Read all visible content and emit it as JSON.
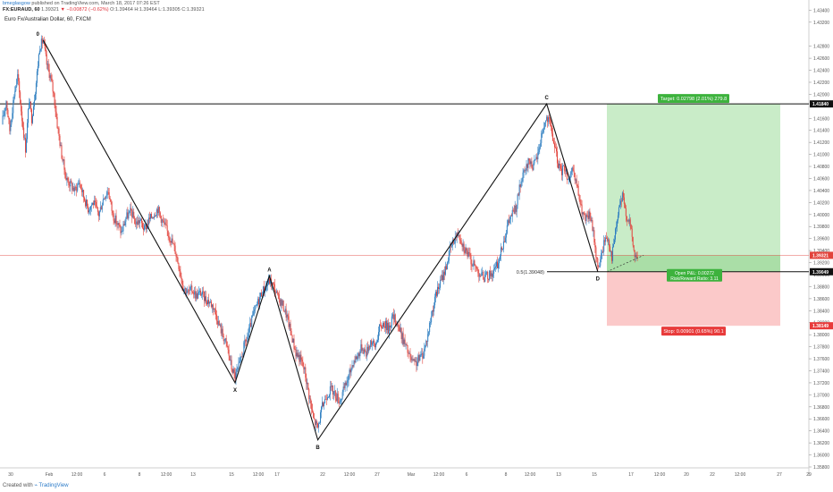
{
  "header": {
    "publisher_user": "bmeglasgow",
    "publisher_text": "published on TradingView.com, March 18, 2017 07:26 EST",
    "symbol": "FX:EURAUD, 60",
    "price": "1.39321",
    "change": "▼ −0.00872 (−0.62%)",
    "ohlc": "O:1.39464 H:1.39464 L:1.39305 C:1.39321"
  },
  "title": "Euro Fx/Australian Dollar, 60, FXCM",
  "footer": {
    "created_with": "Created with",
    "brand": "TradingView"
  },
  "colors": {
    "up": "#2f7fc1",
    "down": "#e2433c",
    "target_zone": "#c9ecc8",
    "stop_zone": "#fbc9c9",
    "target_label": "#3db23d",
    "stop_label": "#e83b3b",
    "current_price": "#e2433c"
  },
  "chart_data": {
    "type": "candlestick",
    "title": "Euro Fx/Australian Dollar, 60, FXCM",
    "xlabel": "",
    "ylabel": "",
    "ylim": [
      1.358,
      1.4345
    ],
    "x_tick_labels": [
      "30",
      "Feb",
      "12:00",
      "6",
      "8",
      "12:00",
      "13",
      "15",
      "12:00",
      "17",
      "22",
      "12:00",
      "27",
      "Mar",
      "12:00",
      "6",
      "8",
      "12:00",
      "13",
      "15",
      "17",
      "12:00",
      "20",
      "22",
      "12:00",
      "27",
      "29"
    ],
    "y_tick_labels": [
      "1.43400",
      "1.43200",
      "1.42800",
      "1.42600",
      "1.42400",
      "1.42200",
      "1.42000",
      "1.41600",
      "1.41400",
      "1.41200",
      "1.41000",
      "1.40800",
      "1.40600",
      "1.40400",
      "1.40200",
      "1.40000",
      "1.39800",
      "1.39600",
      "1.39400",
      "1.39200",
      "1.39000",
      "1.38800",
      "1.38600",
      "1.38400",
      "1.38200",
      "1.38000",
      "1.37800",
      "1.37600",
      "1.37400",
      "1.37200",
      "1.37000",
      "1.36800",
      "1.36600",
      "1.36400",
      "1.36200",
      "1.36000",
      "1.35800"
    ],
    "y_tick_values": [
      1.434,
      1.432,
      1.428,
      1.426,
      1.424,
      1.422,
      1.42,
      1.416,
      1.414,
      1.412,
      1.41,
      1.408,
      1.406,
      1.404,
      1.402,
      1.4,
      1.398,
      1.396,
      1.394,
      1.392,
      1.39,
      1.388,
      1.386,
      1.384,
      1.382,
      1.38,
      1.378,
      1.376,
      1.374,
      1.372,
      1.37,
      1.368,
      1.366,
      1.364,
      1.362,
      1.36,
      1.358
    ],
    "price_path": [
      [
        0,
        1.415
      ],
      [
        5,
        1.419
      ],
      [
        9,
        1.414
      ],
      [
        14,
        1.42
      ],
      [
        18,
        1.423
      ],
      [
        23,
        1.416
      ],
      [
        27,
        1.411
      ],
      [
        31,
        1.419
      ],
      [
        34,
        1.416
      ],
      [
        39,
        1.422
      ],
      [
        43,
        1.428
      ],
      [
        47,
        1.429
      ],
      [
        51,
        1.425
      ],
      [
        55,
        1.423
      ],
      [
        59,
        1.42
      ],
      [
        63,
        1.415
      ],
      [
        68,
        1.41
      ],
      [
        73,
        1.406
      ],
      [
        78,
        1.405
      ],
      [
        83,
        1.404
      ],
      [
        88,
        1.4055
      ],
      [
        93,
        1.403
      ],
      [
        98,
        1.401
      ],
      [
        104,
        1.402
      ],
      [
        110,
        1.4
      ],
      [
        116,
        1.403
      ],
      [
        121,
        1.404
      ],
      [
        126,
        1.4
      ],
      [
        131,
        1.3985
      ],
      [
        136,
        1.397
      ],
      [
        141,
        1.3995
      ],
      [
        147,
        1.4005
      ],
      [
        152,
        1.3985
      ],
      [
        157,
        1.399
      ],
      [
        162,
        1.3975
      ],
      [
        167,
        1.399
      ],
      [
        172,
        1.4
      ],
      [
        177,
        1.401
      ],
      [
        182,
        1.399
      ],
      [
        187,
        1.3975
      ],
      [
        192,
        1.396
      ],
      [
        197,
        1.394
      ],
      [
        202,
        1.391
      ],
      [
        206,
        1.388
      ],
      [
        211,
        1.387
      ],
      [
        216,
        1.3875
      ],
      [
        221,
        1.3865
      ],
      [
        226,
        1.387
      ],
      [
        231,
        1.386
      ],
      [
        236,
        1.3855
      ],
      [
        241,
        1.3845
      ],
      [
        246,
        1.382
      ],
      [
        251,
        1.38
      ],
      [
        256,
        1.378
      ],
      [
        261,
        1.3745
      ],
      [
        265,
        1.373
      ],
      [
        270,
        1.375
      ],
      [
        275,
        1.378
      ],
      [
        280,
        1.38
      ],
      [
        285,
        1.383
      ],
      [
        290,
        1.385
      ],
      [
        295,
        1.387
      ],
      [
        300,
        1.388
      ],
      [
        304,
        1.389
      ],
      [
        309,
        1.388
      ],
      [
        314,
        1.386
      ],
      [
        319,
        1.385
      ],
      [
        324,
        1.383
      ],
      [
        329,
        1.38
      ],
      [
        334,
        1.377
      ],
      [
        339,
        1.376
      ],
      [
        344,
        1.374
      ],
      [
        349,
        1.37
      ],
      [
        354,
        1.366
      ],
      [
        359,
        1.3645
      ],
      [
        364,
        1.368
      ],
      [
        369,
        1.37
      ],
      [
        374,
        1.371
      ],
      [
        379,
        1.37
      ],
      [
        384,
        1.369
      ],
      [
        389,
        1.371
      ],
      [
        394,
        1.373
      ],
      [
        399,
        1.3755
      ],
      [
        404,
        1.3765
      ],
      [
        409,
        1.378
      ],
      [
        414,
        1.377
      ],
      [
        419,
        1.379
      ],
      [
        424,
        1.378
      ],
      [
        429,
        1.381
      ],
      [
        434,
        1.382
      ],
      [
        439,
        1.381
      ],
      [
        444,
        1.383
      ],
      [
        449,
        1.382
      ],
      [
        454,
        1.38
      ],
      [
        459,
        1.378
      ],
      [
        464,
        1.376
      ],
      [
        469,
        1.375
      ],
      [
        474,
        1.376
      ],
      [
        479,
        1.377
      ],
      [
        484,
        1.38
      ],
      [
        489,
        1.384
      ],
      [
        494,
        1.387
      ],
      [
        499,
        1.389
      ],
      [
        504,
        1.391
      ],
      [
        509,
        1.394
      ],
      [
        514,
        1.396
      ],
      [
        519,
        1.397
      ],
      [
        524,
        1.395
      ],
      [
        529,
        1.3935
      ],
      [
        534,
        1.392
      ],
      [
        539,
        1.391
      ],
      [
        544,
        1.39
      ],
      [
        549,
        1.3895
      ],
      [
        554,
        1.39
      ],
      [
        559,
        1.3905
      ],
      [
        564,
        1.392
      ],
      [
        569,
        1.395
      ],
      [
        574,
        1.398
      ],
      [
        579,
        1.4
      ],
      [
        584,
        1.401
      ],
      [
        589,
        1.405
      ],
      [
        594,
        1.407
      ],
      [
        599,
        1.409
      ],
      [
        604,
        1.408
      ],
      [
        609,
        1.41
      ],
      [
        614,
        1.414
      ],
      [
        619,
        1.416
      ],
      [
        623,
        1.415
      ],
      [
        627,
        1.412
      ],
      [
        631,
        1.409
      ],
      [
        635,
        1.407
      ],
      [
        639,
        1.408
      ],
      [
        643,
        1.406
      ],
      [
        648,
        1.407
      ],
      [
        653,
        1.405
      ],
      [
        658,
        1.401
      ],
      [
        663,
        1.399
      ],
      [
        668,
        1.4
      ],
      [
        673,
        1.396
      ],
      [
        677,
        1.391
      ],
      [
        681,
        1.393
      ],
      [
        685,
        1.396
      ],
      [
        689,
        1.396
      ],
      [
        693,
        1.393
      ],
      [
        697,
        1.397
      ],
      [
        701,
        1.401
      ],
      [
        705,
        1.403
      ],
      [
        709,
        1.4
      ],
      [
        713,
        1.399
      ],
      [
        716,
        1.396
      ],
      [
        719,
        1.393
      ],
      [
        722,
        1.3932
      ]
    ],
    "pattern": [
      {
        "label": "0",
        "value": 1.429
      },
      {
        "label": "X",
        "value": 1.372
      },
      {
        "label": "A",
        "value": 1.3898
      },
      {
        "label": "B",
        "value": 1.3625
      },
      {
        "label": "C",
        "value": 1.4184
      },
      {
        "label": "D",
        "value": 1.3905
      }
    ],
    "levels": {
      "resistance": {
        "value": 1.4184,
        "label": "1.41840"
      },
      "entry": {
        "value": 1.39048,
        "label": "1.39049"
      },
      "current": {
        "value": 1.39321,
        "label": "1.39321"
      },
      "stop": {
        "value": 1.38149,
        "label": "1.38149"
      },
      "fib_label": "0.5(1.39048)"
    },
    "position": {
      "target_text": "Target: 0.02798 (2.01%) 279.8",
      "stop_text": "Stop: 0.00901 (0.65%) 90.1",
      "pnl_text": "Open P&L: 0.00272",
      "rr_text": "Risk/Reward Ratio: 3.11"
    },
    "legend": "none",
    "grid": false
  }
}
